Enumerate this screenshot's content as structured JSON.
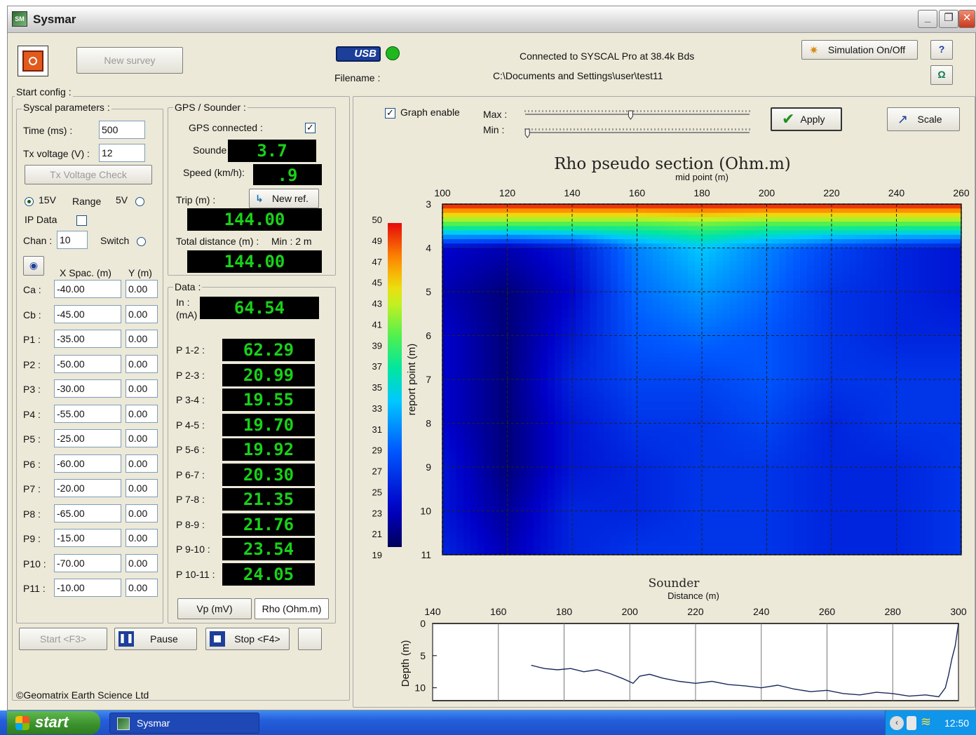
{
  "window": {
    "title": "Sysmar",
    "app_icon": "sysmar-icon",
    "controls": [
      "minimize-icon",
      "restore-icon",
      "close-icon"
    ],
    "glyphs": {
      "minimize": "_",
      "restore": "❐",
      "close": "✕"
    }
  },
  "toolbar": {
    "power_icon": "power-icon",
    "new_survey": "New survey",
    "usb_badge": "USB",
    "usb_status_color": "#1fb81f",
    "filename_label": "Filename :",
    "connection_status": "Connected to SYSCAL Pro at 38.4k Bds",
    "filename_value": "C:\\Documents and Settings\\user\\test11",
    "simulation": "Simulation On/Off",
    "help_icon": "help-icon",
    "info_icon": "omega-icon"
  },
  "start_config": {
    "legend": "Start config :",
    "syscal": {
      "legend": "Syscal parameters :",
      "time_label": "Time (ms) :",
      "time_value": "500",
      "tx_label": "Tx voltage  (V) :",
      "tx_value": "12",
      "tx_check": "Tx Voltage Check",
      "v15": "15V",
      "range": "Range",
      "v5": "5V",
      "ip_data": "IP Data",
      "chan_label": "Chan :",
      "chan_value": "10",
      "switch": "Switch",
      "xspac_header": "X Spac. (m)",
      "y_header": "Y (m)",
      "electrodes": [
        {
          "label": "Ca :",
          "x": "-40.00",
          "y": "0.00"
        },
        {
          "label": "Cb :",
          "x": "-45.00",
          "y": "0.00"
        },
        {
          "label": "P1 :",
          "x": "-35.00",
          "y": "0.00"
        },
        {
          "label": "P2 :",
          "x": "-50.00",
          "y": "0.00"
        },
        {
          "label": "P3 :",
          "x": "-30.00",
          "y": "0.00"
        },
        {
          "label": "P4 :",
          "x": "-55.00",
          "y": "0.00"
        },
        {
          "label": "P5 :",
          "x": "-25.00",
          "y": "0.00"
        },
        {
          "label": "P6 :",
          "x": "-60.00",
          "y": "0.00"
        },
        {
          "label": "P7 :",
          "x": "-20.00",
          "y": "0.00"
        },
        {
          "label": "P8 :",
          "x": "-65.00",
          "y": "0.00"
        },
        {
          "label": "P9 :",
          "x": "-15.00",
          "y": "0.00"
        },
        {
          "label": "P10 :",
          "x": "-70.00",
          "y": "0.00"
        },
        {
          "label": "P11 :",
          "x": "-10.00",
          "y": "0.00"
        }
      ]
    },
    "gps": {
      "legend": "GPS / Sounder :",
      "connected_label": "GPS connected :",
      "sounder_label": "Sounde",
      "sounder_value": "3.7",
      "speed_label": "Speed (km/h):",
      "speed_value": ".9",
      "trip_label": "Trip (m) :",
      "new_ref": "New ref.",
      "trip_value": "144.00",
      "total_label": "Total distance (m) :",
      "min_label": "Min : 2 m",
      "total_value": "144.00"
    },
    "data": {
      "legend": "Data :",
      "in_label": "In :",
      "in_unit": "(mA)",
      "in_value": "64.54",
      "readings": [
        {
          "label": "P 1-2 :",
          "value": "62.29"
        },
        {
          "label": "P 2-3 :",
          "value": "20.99"
        },
        {
          "label": "P 3-4 :",
          "value": "19.55"
        },
        {
          "label": "P 4-5 :",
          "value": "19.70"
        },
        {
          "label": "P 5-6 :",
          "value": "19.92"
        },
        {
          "label": "P 6-7 :",
          "value": "20.30"
        },
        {
          "label": "P 7-8 :",
          "value": "21.35"
        },
        {
          "label": "P 8-9 :",
          "value": "21.76"
        },
        {
          "label": "P 9-10 :",
          "value": "23.54"
        },
        {
          "label": "P 10-11 :",
          "value": "24.05"
        }
      ],
      "tab_vp": "Vp (mV)",
      "tab_rho": "Rho (Ohm.m)"
    }
  },
  "actions": {
    "start": "Start <F3>",
    "pause": "Pause",
    "stop": "Stop <F4>"
  },
  "copyright": "©Geomatrix Earth Science Ltd",
  "graph_controls": {
    "graph_enable": "Graph enable",
    "max_label": "Max :",
    "min_label": "Min :",
    "max_value": 0.47,
    "min_value": 0.01,
    "apply": "Apply",
    "scale": "Scale"
  },
  "chart_data": [
    {
      "type": "heatmap",
      "title": "Rho pseudo section (Ohm.m)",
      "xlabel": "mid point (m)",
      "ylabel": "report point  (m)",
      "x_ticks": [
        100,
        120,
        140,
        160,
        180,
        200,
        220,
        240,
        260
      ],
      "xlim": [
        100,
        260
      ],
      "y_ticks": [
        3,
        4,
        5,
        6,
        7,
        8,
        9,
        10,
        11
      ],
      "ylim": [
        3,
        11
      ],
      "colorbar_ticks": [
        50,
        49,
        47,
        45,
        43,
        41,
        39,
        37,
        35,
        33,
        31,
        29,
        27,
        25,
        23,
        21,
        19
      ],
      "color_range": [
        19,
        50
      ],
      "x": [
        100,
        120,
        140,
        160,
        180,
        200,
        220,
        240,
        260
      ],
      "y": [
        3,
        3.5,
        4,
        5,
        6,
        7,
        8,
        9,
        10,
        11
      ],
      "values": [
        [
          50,
          50,
          50,
          50,
          50,
          50,
          50,
          50,
          50
        ],
        [
          38,
          38,
          38,
          38,
          39,
          38,
          38,
          38,
          38
        ],
        [
          23,
          22,
          24,
          30,
          33,
          30,
          27,
          25,
          24
        ],
        [
          22,
          20,
          23,
          29,
          31,
          29,
          26,
          25,
          24
        ],
        [
          23,
          20,
          24,
          28,
          29,
          28,
          26,
          25,
          25
        ],
        [
          23,
          20,
          25,
          27,
          27,
          28,
          26,
          26,
          26
        ],
        [
          23,
          20,
          24,
          26,
          26,
          27,
          25,
          26,
          26
        ],
        [
          24,
          20,
          24,
          25,
          26,
          26,
          25,
          25,
          26
        ],
        [
          24,
          21,
          25,
          25,
          26,
          26,
          25,
          25,
          26
        ],
        [
          25,
          22,
          25,
          26,
          26,
          26,
          25,
          25,
          26
        ]
      ]
    },
    {
      "type": "line",
      "title": "Sounder",
      "xlabel": "Distance (m)",
      "ylabel": "Depth (m)",
      "x_ticks": [
        140,
        160,
        180,
        200,
        220,
        240,
        260,
        280,
        300
      ],
      "xlim": [
        140,
        300
      ],
      "y_ticks": [
        0,
        5,
        10
      ],
      "ylim": [
        0,
        12
      ],
      "series": [
        {
          "x": [
            170,
            174,
            178,
            182,
            186,
            190,
            194,
            198,
            201,
            203,
            206,
            210,
            215,
            220,
            225,
            230,
            235,
            240,
            245,
            250,
            255,
            260,
            265,
            270,
            275,
            280,
            285,
            290,
            294,
            296,
            297,
            298,
            299,
            300
          ],
          "y": [
            6.5,
            7.0,
            7.2,
            7.0,
            7.5,
            7.2,
            7.8,
            8.6,
            9.3,
            8.2,
            7.9,
            8.5,
            9.0,
            9.3,
            9.0,
            9.5,
            9.7,
            10.0,
            9.6,
            10.2,
            10.6,
            10.4,
            10.9,
            11.1,
            10.7,
            10.9,
            11.3,
            11.1,
            11.4,
            10.0,
            8.0,
            5.5,
            3.5,
            0.0
          ]
        }
      ]
    }
  ],
  "taskbar": {
    "start": "start",
    "task": "Sysmar",
    "clock": "12:50",
    "tray_icons": [
      "back-icon",
      "usb-tray-icon",
      "network-icon"
    ]
  }
}
